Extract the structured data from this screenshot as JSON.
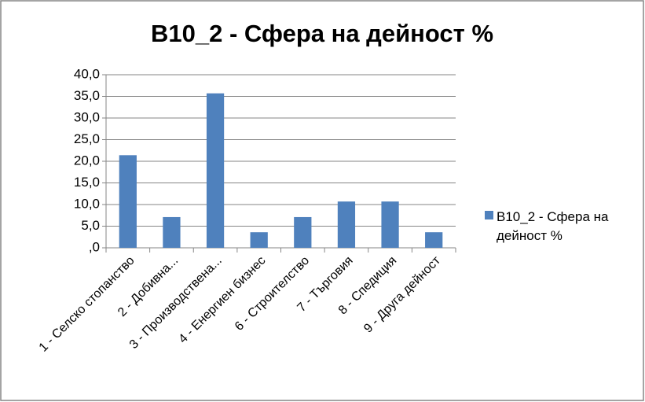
{
  "chart_data": {
    "type": "bar",
    "title": "B10_2 - Сфера на дейност %",
    "categories": [
      "1 - Селско стопанство",
      "2 - Добивна...",
      "3 - Производствена...",
      "4 - Енергиен бизнес",
      "6 - Строителство",
      "7 - Търговия",
      "8 - Спедиция",
      "9 - Друга дейност"
    ],
    "series": [
      {
        "name": "B10_2 - Сфера на дейност %",
        "color": "#4f81bd",
        "values": [
          21.4,
          7.1,
          35.7,
          3.6,
          7.1,
          10.7,
          10.7,
          3.6
        ]
      }
    ],
    "ylim": [
      0,
      40
    ],
    "yticks": [
      {
        "value": 0,
        "label": ",0"
      },
      {
        "value": 5,
        "label": "5,0"
      },
      {
        "value": 10,
        "label": "10,0"
      },
      {
        "value": 15,
        "label": "15,0"
      },
      {
        "value": 20,
        "label": "20,0"
      },
      {
        "value": 25,
        "label": "25,0"
      },
      {
        "value": 30,
        "label": "30,0"
      },
      {
        "value": 35,
        "label": "35,0"
      },
      {
        "value": 40,
        "label": "40,0"
      }
    ],
    "grid": true,
    "legend": "right"
  }
}
